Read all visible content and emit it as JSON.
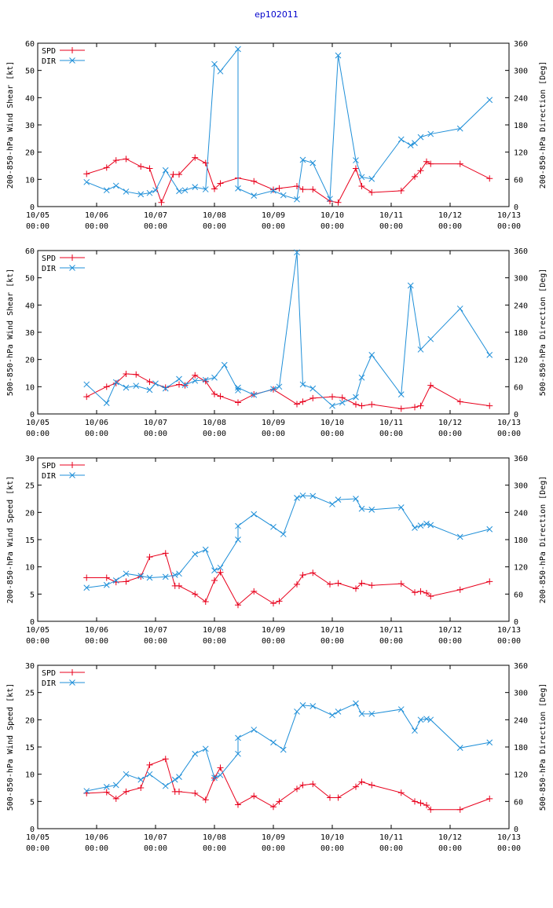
{
  "title": "ep102011",
  "colors": {
    "spd": "#e8001c",
    "dir": "#1f8fd8",
    "axis": "#000000",
    "title": "#0000cc"
  },
  "x_ticks": [
    "10/05\n00:00",
    "10/06\n00:00",
    "10/07\n00:00",
    "10/08\n00:00",
    "10/09\n00:00",
    "10/10\n00:00",
    "10/11\n00:00",
    "10/12\n00:00",
    "10/13\n00:00"
  ],
  "chart_data": [
    {
      "type": "line",
      "ylabel": "200-850-hPa Wind Shear [kt]",
      "y2label": "200-850-hPa Direction [Deg]",
      "ylim": [
        0,
        60
      ],
      "yticks": [
        0,
        10,
        20,
        30,
        40,
        50,
        60
      ],
      "y2lim": [
        0,
        360
      ],
      "y2ticks": [
        0,
        60,
        120,
        180,
        240,
        300,
        360
      ],
      "xlim": [
        0,
        8
      ],
      "legend": [
        "SPD",
        "DIR"
      ],
      "series": [
        {
          "name": "SPD",
          "axis": "left",
          "x": [
            0.83,
            1.17,
            1.33,
            1.5,
            1.75,
            1.9,
            2.1,
            2.3,
            2.4,
            2.67,
            2.85,
            3.0,
            3.1,
            3.4,
            3.67,
            4.0,
            4.1,
            4.4,
            4.5,
            4.67,
            4.96,
            5.1,
            5.4,
            5.5,
            5.67,
            6.17,
            6.4,
            6.5,
            6.6,
            6.67,
            7.17,
            7.67
          ],
          "values": [
            12,
            14.3,
            17,
            17.5,
            14.7,
            14,
            1.5,
            11.8,
            11.8,
            18,
            16,
            6.5,
            8.5,
            10.5,
            9.3,
            6.2,
            6.7,
            7.5,
            6.3,
            6.3,
            2,
            1.5,
            14,
            7.5,
            5.2,
            5.8,
            11,
            13.2,
            16.5,
            15.7,
            15.7,
            10.3
          ]
        },
        {
          "name": "DIR",
          "axis": "right",
          "x": [
            0.83,
            1.17,
            1.33,
            1.5,
            1.75,
            1.9,
            2.0,
            2.17,
            2.4,
            2.5,
            2.67,
            2.85,
            3.0,
            3.1,
            3.4,
            3.4,
            3.67,
            4.0,
            4.17,
            4.4,
            4.5,
            4.67,
            4.96,
            5.1,
            5.4,
            5.5,
            5.67,
            6.17,
            6.33,
            6.4,
            6.5,
            6.67,
            7.17,
            7.67
          ],
          "values": [
            54,
            36,
            46,
            33,
            27,
            30,
            36,
            80,
            34,
            36,
            43,
            38,
            314,
            298,
            347,
            40,
            24,
            35,
            25,
            16,
            103,
            96,
            17,
            333,
            102,
            65,
            61,
            148,
            135,
            140,
            153,
            160,
            172,
            235
          ]
        }
      ]
    },
    {
      "type": "line",
      "ylabel": "500-850-hPa Wind Shear [kt]",
      "y2label": "500-850-hPa Direction [Deg]",
      "ylim": [
        0,
        60
      ],
      "yticks": [
        0,
        10,
        20,
        30,
        40,
        50,
        60
      ],
      "y2lim": [
        0,
        360
      ],
      "y2ticks": [
        0,
        60,
        120,
        180,
        240,
        300,
        360
      ],
      "xlim": [
        0,
        8
      ],
      "legend": [
        "SPD",
        "DIR"
      ],
      "series": [
        {
          "name": "SPD",
          "axis": "left",
          "x": [
            0.83,
            1.17,
            1.33,
            1.5,
            1.67,
            1.9,
            2.17,
            2.4,
            2.5,
            2.67,
            2.85,
            3.0,
            3.1,
            3.4,
            3.67,
            4.0,
            4.4,
            4.5,
            4.67,
            5.0,
            5.17,
            5.4,
            5.5,
            5.67,
            6.17,
            6.4,
            6.5,
            6.67,
            7.17,
            7.67
          ],
          "values": [
            6.3,
            10,
            11.3,
            14.7,
            14.5,
            11.8,
            9.7,
            10.8,
            10.5,
            14.2,
            12,
            7.3,
            6.5,
            4.2,
            7.2,
            9,
            3.6,
            4.5,
            5.8,
            6.3,
            6,
            3.5,
            3,
            3.5,
            1.9,
            2.5,
            3,
            10.5,
            4.5,
            3
          ]
        },
        {
          "name": "DIR",
          "axis": "right",
          "x": [
            0.83,
            1.17,
            1.33,
            1.5,
            1.67,
            1.9,
            2.0,
            2.17,
            2.4,
            2.5,
            2.67,
            2.85,
            3.0,
            3.17,
            3.4,
            3.4,
            3.67,
            4.0,
            4.1,
            4.4,
            4.5,
            4.67,
            5.0,
            5.17,
            5.4,
            5.5,
            5.67,
            6.17,
            6.33,
            6.5,
            6.67,
            7.17,
            7.67
          ],
          "values": [
            65,
            24,
            70,
            58,
            62,
            53,
            67,
            56,
            77,
            64,
            73,
            75,
            80,
            108,
            52,
            58,
            42,
            55,
            60,
            356,
            65,
            56,
            18,
            25,
            37,
            80,
            130,
            43,
            283,
            142,
            165,
            232,
            130
          ]
        }
      ]
    },
    {
      "type": "line",
      "ylabel": "200-850-hPa Wind Speed [kt]",
      "y2label": "200-850-hPa Direction [Deg]",
      "ylim": [
        0,
        30
      ],
      "yticks": [
        0,
        5,
        10,
        15,
        20,
        25,
        30
      ],
      "y2lim": [
        0,
        360
      ],
      "y2ticks": [
        0,
        60,
        120,
        180,
        240,
        300,
        360
      ],
      "xlim": [
        0,
        8
      ],
      "legend": [
        "SPD",
        "DIR"
      ],
      "series": [
        {
          "name": "SPD",
          "axis": "left",
          "x": [
            0.83,
            1.17,
            1.33,
            1.5,
            1.75,
            1.9,
            2.17,
            2.33,
            2.4,
            2.67,
            2.85,
            3.0,
            3.1,
            3.4,
            3.67,
            4.0,
            4.1,
            4.4,
            4.5,
            4.67,
            4.96,
            5.1,
            5.4,
            5.5,
            5.67,
            6.17,
            6.4,
            6.5,
            6.6,
            6.67,
            7.17,
            7.67
          ],
          "values": [
            8,
            8,
            7.2,
            7.3,
            8.2,
            11.8,
            12.5,
            6.5,
            6.5,
            5,
            3.6,
            7.5,
            9,
            3,
            5.5,
            3.3,
            3.7,
            6.8,
            8.5,
            8.9,
            6.8,
            7,
            6,
            7,
            6.6,
            6.9,
            5.3,
            5.5,
            5.2,
            4.6,
            5.8,
            7.3
          ]
        },
        {
          "name": "DIR",
          "axis": "right",
          "x": [
            0.83,
            1.17,
            1.33,
            1.5,
            1.75,
            1.9,
            2.17,
            2.33,
            2.4,
            2.67,
            2.85,
            3.0,
            3.1,
            3.4,
            3.4,
            3.67,
            4.0,
            4.17,
            4.4,
            4.5,
            4.67,
            5.0,
            5.1,
            5.4,
            5.5,
            5.67,
            6.17,
            6.4,
            6.5,
            6.6,
            6.67,
            7.17,
            7.67
          ],
          "values": [
            74,
            80,
            90,
            105,
            100,
            96,
            98,
            102,
            105,
            148,
            158,
            112,
            118,
            180,
            210,
            236,
            208,
            192,
            272,
            277,
            276,
            258,
            268,
            270,
            248,
            246,
            251,
            206,
            211,
            215,
            212,
            186,
            203
          ]
        }
      ]
    },
    {
      "type": "line",
      "ylabel": "500-850-hPa Wind Speed [kt]",
      "y2label": "500-850-hPa Direction [Deg]",
      "ylim": [
        0,
        30
      ],
      "yticks": [
        0,
        5,
        10,
        15,
        20,
        25,
        30
      ],
      "y2lim": [
        0,
        360
      ],
      "y2ticks": [
        0,
        60,
        120,
        180,
        240,
        300,
        360
      ],
      "xlim": [
        0,
        8
      ],
      "legend": [
        "SPD",
        "DIR"
      ],
      "series": [
        {
          "name": "SPD",
          "axis": "left",
          "x": [
            0.83,
            1.17,
            1.33,
            1.5,
            1.75,
            1.9,
            2.17,
            2.33,
            2.4,
            2.67,
            2.85,
            3.0,
            3.1,
            3.4,
            3.67,
            4.0,
            4.1,
            4.4,
            4.5,
            4.67,
            4.96,
            5.1,
            5.4,
            5.5,
            5.67,
            6.17,
            6.4,
            6.5,
            6.6,
            6.67,
            7.17,
            7.67
          ],
          "values": [
            6.5,
            6.7,
            5.5,
            6.8,
            7.5,
            11.7,
            12.8,
            6.8,
            6.8,
            6.5,
            5.3,
            9.3,
            11.2,
            4.4,
            6,
            4,
            5,
            7.3,
            8,
            8.2,
            5.7,
            5.7,
            7.7,
            8.6,
            8,
            6.6,
            5,
            4.7,
            4.3,
            3.5,
            3.5,
            5.5
          ]
        },
        {
          "name": "DIR",
          "axis": "right",
          "x": [
            0.83,
            1.17,
            1.33,
            1.5,
            1.75,
            1.9,
            2.17,
            2.33,
            2.4,
            2.67,
            2.85,
            3.0,
            3.1,
            3.4,
            3.4,
            3.67,
            4.0,
            4.17,
            4.4,
            4.5,
            4.67,
            5.0,
            5.1,
            5.4,
            5.5,
            5.67,
            6.17,
            6.4,
            6.5,
            6.6,
            6.67,
            7.17,
            7.67
          ],
          "values": [
            83,
            92,
            96,
            120,
            108,
            120,
            94,
            108,
            114,
            165,
            176,
            112,
            118,
            165,
            200,
            218,
            190,
            174,
            258,
            272,
            270,
            250,
            258,
            276,
            253,
            253,
            263,
            216,
            240,
            242,
            240,
            178,
            190
          ]
        }
      ]
    }
  ]
}
